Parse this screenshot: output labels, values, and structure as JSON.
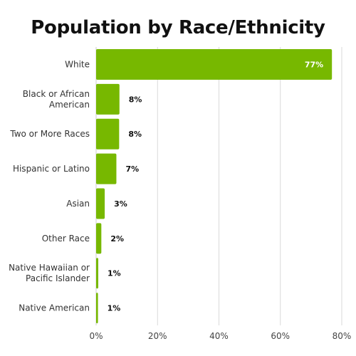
{
  "chart_data": {
    "type": "bar",
    "orientation": "horizontal",
    "title": "Population by Race/Ethnicity",
    "categories": [
      "White",
      "Black or African American",
      "Two or More Races",
      "Hispanic or Latino",
      "Asian",
      "Other Race",
      "Native Hawaiian or Pacific Islander",
      "Native American"
    ],
    "category_lines": [
      [
        "White"
      ],
      [
        "Black or African",
        "American"
      ],
      [
        "Two or More Races"
      ],
      [
        "Hispanic or Latino"
      ],
      [
        "Asian"
      ],
      [
        "Other Race"
      ],
      [
        "Native Hawaiian or",
        "Pacific Islander"
      ],
      [
        "Native American"
      ]
    ],
    "values": [
      76.8,
      7.6,
      7.5,
      6.6,
      2.8,
      1.7,
      0.7,
      0.6
    ],
    "value_labels": [
      "77%",
      "8%",
      "8%",
      "7%",
      "3%",
      "2%",
      "1%",
      "1%"
    ],
    "xlim": [
      0,
      80
    ],
    "xticks": [
      "0%",
      "20%",
      "40%",
      "60%",
      "80%"
    ],
    "grid": true,
    "bar_color": "#77b800",
    "xlabel": "",
    "ylabel": ""
  }
}
